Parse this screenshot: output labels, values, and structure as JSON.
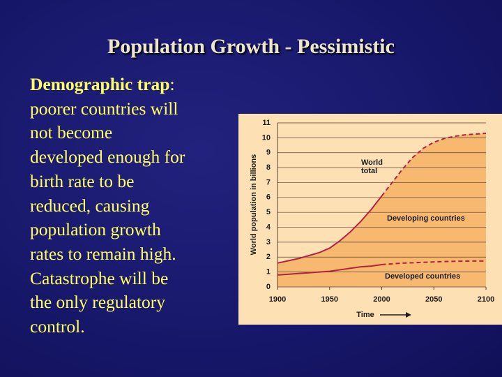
{
  "title": "Population Growth - Pessimistic",
  "body": {
    "term": "Demographic trap",
    "after_term": ":",
    "lines": [
      "poorer countries will",
      "not become",
      "developed enough for",
      "birth rate to be",
      "reduced, causing",
      "population growth",
      "rates to remain high.",
      "Catastrophe will be",
      "the only regulatory",
      "control."
    ]
  },
  "chart_data": {
    "type": "line",
    "y_label": "World population in billions",
    "x_label": "Time",
    "x": [
      1900,
      1910,
      1920,
      1930,
      1940,
      1950,
      1960,
      1970,
      1980,
      1990,
      2000,
      2010,
      2020,
      2030,
      2040,
      2050,
      2060,
      2070,
      2080,
      2090,
      2100
    ],
    "series": [
      {
        "name": "World total",
        "color": "#b3233f",
        "fill": "#f7b870",
        "values": [
          1.6,
          1.75,
          1.9,
          2.1,
          2.3,
          2.6,
          3.1,
          3.7,
          4.4,
          5.2,
          6.1,
          7.0,
          7.9,
          8.7,
          9.3,
          9.7,
          9.95,
          10.1,
          10.2,
          10.25,
          10.3
        ]
      },
      {
        "name": "Developed countries",
        "color": "#b3233f",
        "values": [
          0.8,
          0.85,
          0.9,
          0.95,
          1.0,
          1.05,
          1.15,
          1.25,
          1.35,
          1.4,
          1.5,
          1.55,
          1.6,
          1.62,
          1.65,
          1.68,
          1.7,
          1.72,
          1.73,
          1.74,
          1.74
        ]
      }
    ],
    "annotations": [
      "World total",
      "Developing countries",
      "Developed countries"
    ],
    "dashed_from": 2000,
    "xlim": [
      1900,
      2100
    ],
    "xticks": [
      1900,
      1950,
      2000,
      2050,
      2100
    ],
    "ylim": [
      0,
      11
    ],
    "yticks": [
      0,
      1,
      2,
      3,
      4,
      5,
      6,
      7,
      8,
      9,
      10,
      11
    ],
    "grid": true
  }
}
